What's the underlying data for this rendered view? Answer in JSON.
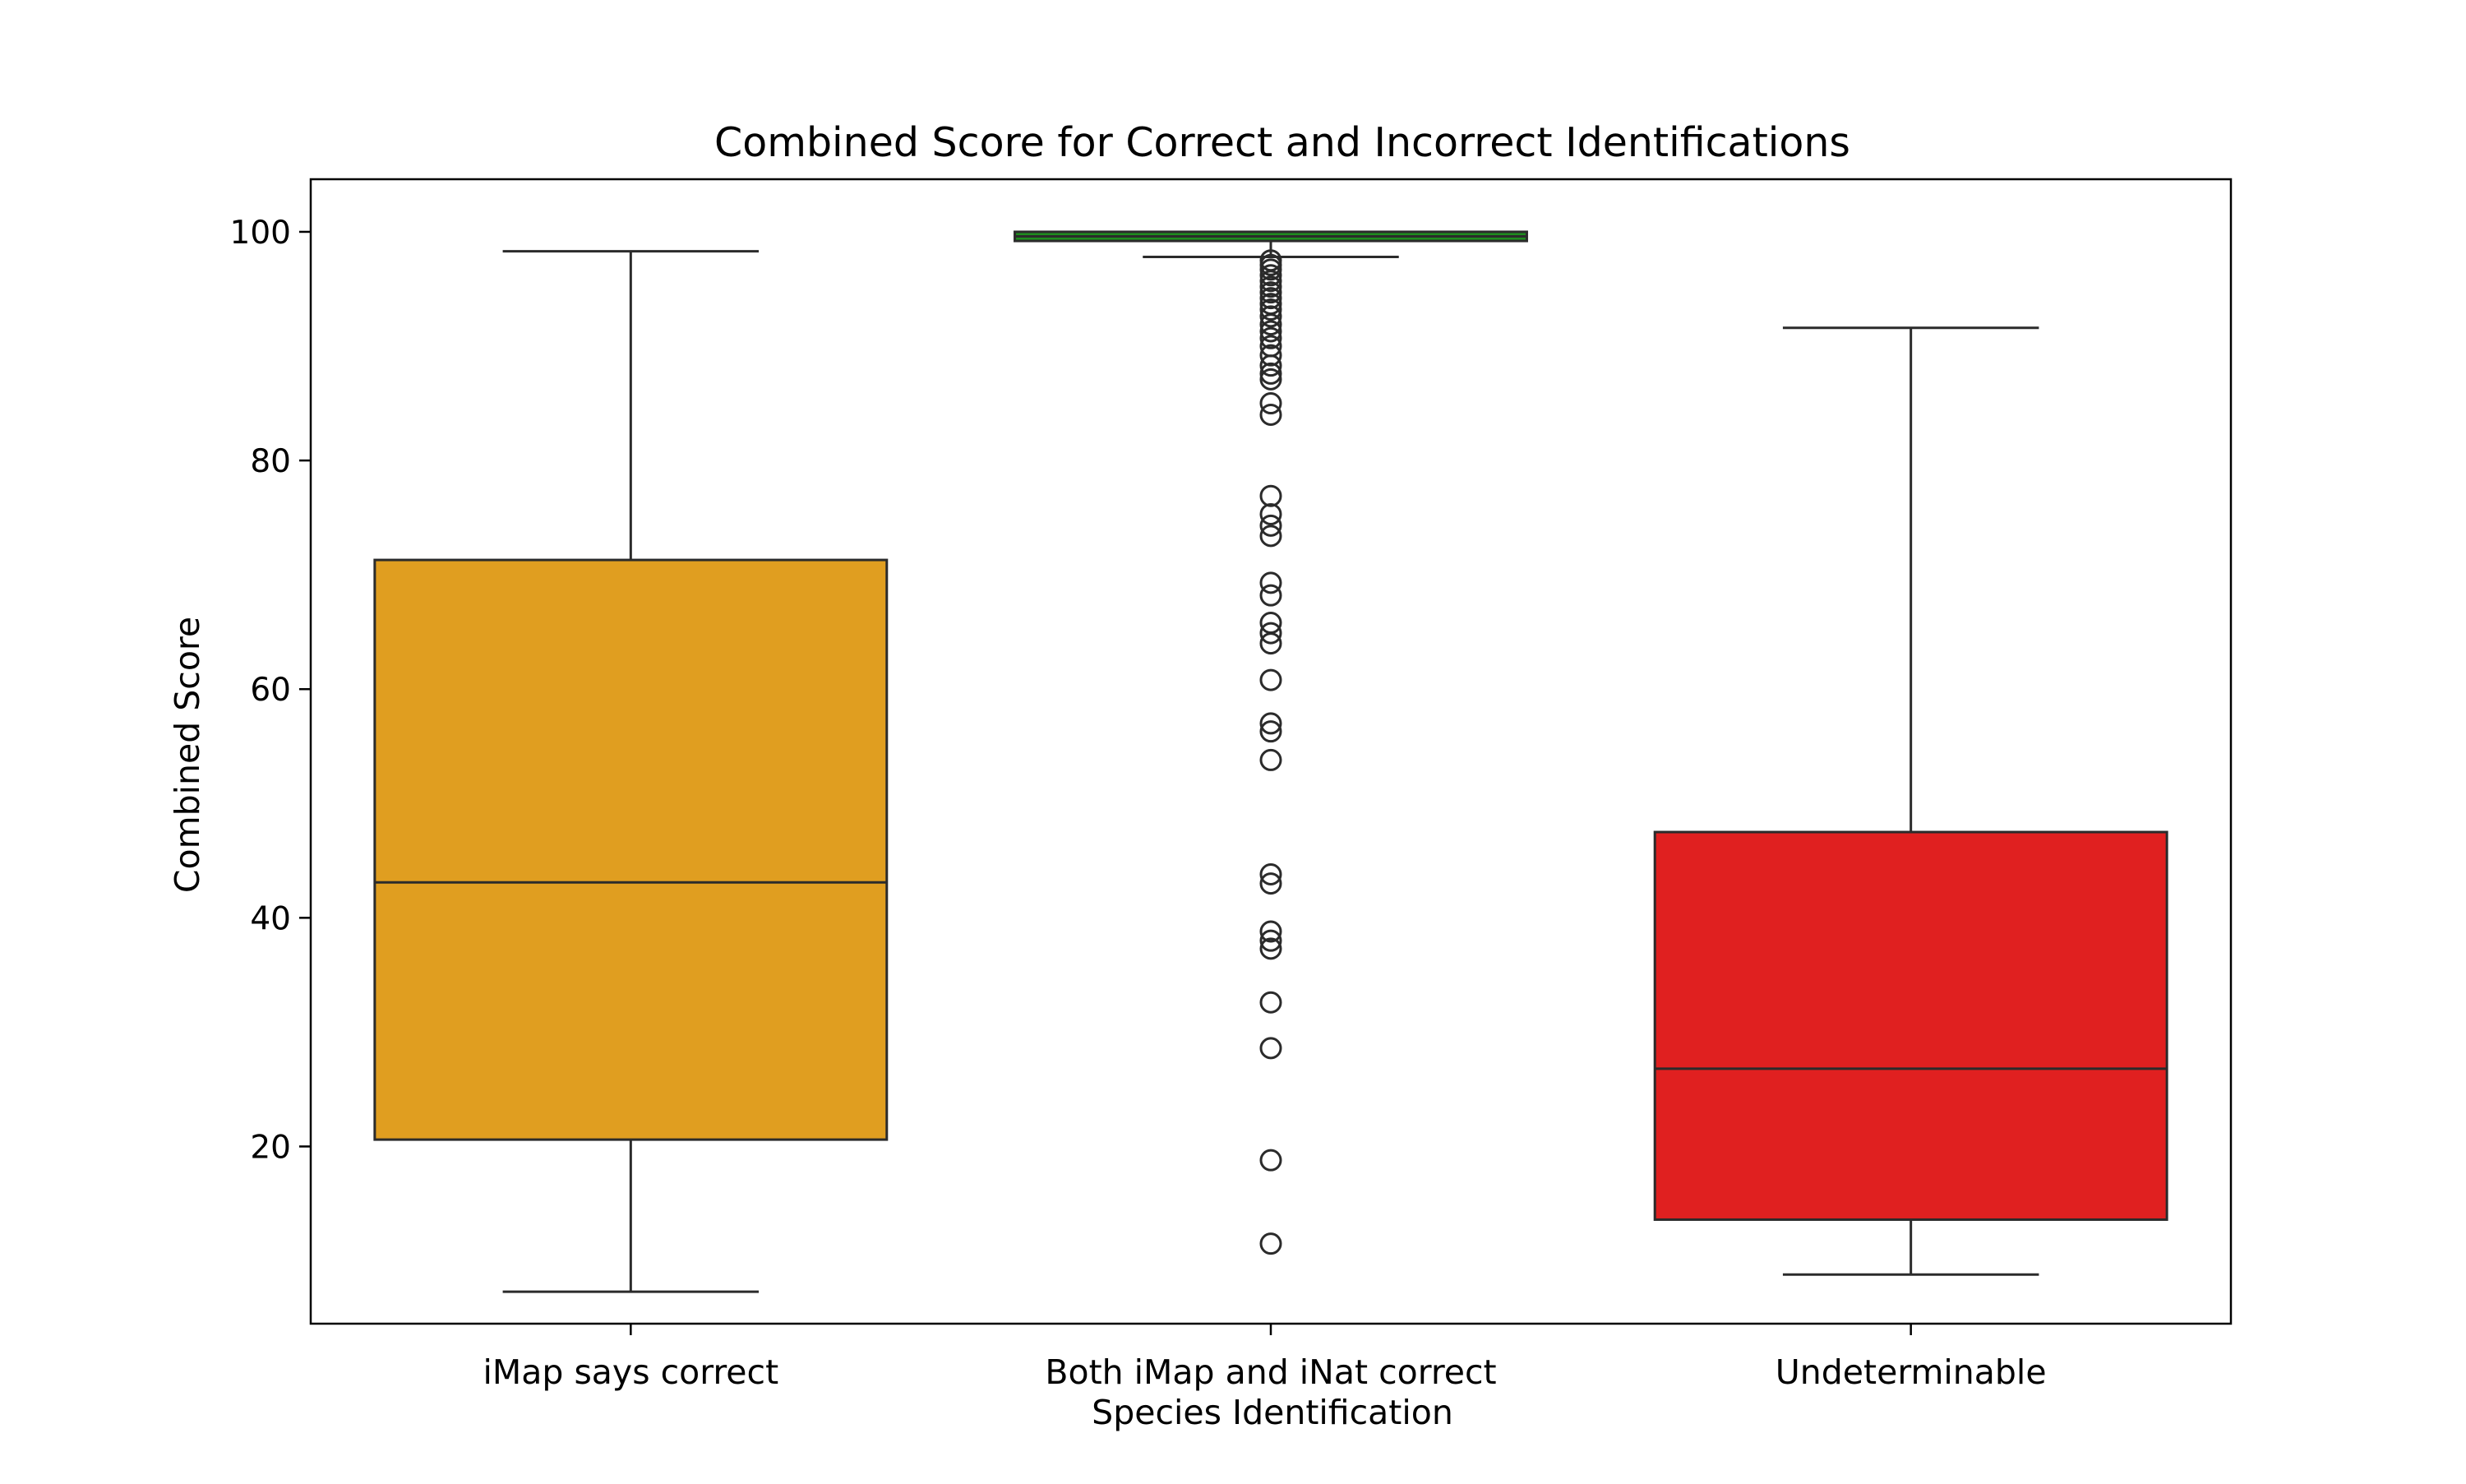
{
  "chart_data": {
    "type": "box",
    "title": "Combined Score for Correct and Incorrect Identifications",
    "xlabel": "Species Identification",
    "ylabel": "Combined Score",
    "ylim": [
      4.5,
      104.6
    ],
    "yticks": [
      20,
      40,
      60,
      80,
      100
    ],
    "grid": false,
    "categories": [
      {
        "label": "iMap says correct",
        "color": "#E09E20",
        "whisker_low": 7.3,
        "q1": 20.6,
        "median": 43.1,
        "q3": 71.3,
        "whisker_high": 98.3,
        "outliers": []
      },
      {
        "label": "Both iMap and iNat correct",
        "color": "#1E8C1E",
        "whisker_low": 97.8,
        "q1": 99.2,
        "median": 99.6,
        "q3": 100.0,
        "whisker_high": 100.0,
        "outliers": [
          97.5,
          97.1,
          96.7,
          96.2,
          95.7,
          95.2,
          94.7,
          94.2,
          93.7,
          93.2,
          92.6,
          91.9,
          91.3,
          90.7,
          90.0,
          89.2,
          88.3,
          87.6,
          87.1,
          85.0,
          84.0,
          76.9,
          75.3,
          74.3,
          73.4,
          69.3,
          68.2,
          65.8,
          64.9,
          64.0,
          60.8,
          57.0,
          56.3,
          53.8,
          43.8,
          43.0,
          38.8,
          38.0,
          37.3,
          32.6,
          28.6,
          18.8,
          11.5
        ]
      },
      {
        "label": "Undeterminable",
        "color": "#E02020",
        "whisker_low": 8.8,
        "q1": 13.6,
        "median": 26.8,
        "q3": 47.5,
        "whisker_high": 91.6,
        "outliers": []
      }
    ]
  }
}
